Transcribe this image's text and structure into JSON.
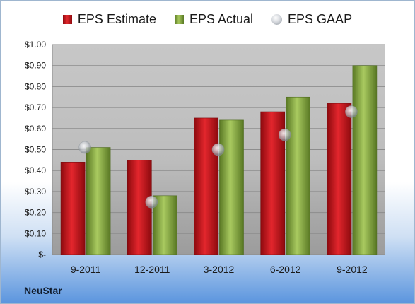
{
  "company": "NeuStar",
  "legend": {
    "estimate": "EPS Estimate",
    "actual": "EPS Actual",
    "gaap": "EPS GAAP"
  },
  "colors": {
    "estimate": "#c8161d",
    "actual": "#8db347",
    "gaap": "#c4c9cf"
  },
  "chart_data": {
    "type": "bar",
    "categories": [
      "9-2011",
      "12-2011",
      "3-2012",
      "6-2012",
      "9-2012"
    ],
    "series": [
      {
        "name": "EPS Estimate",
        "values": [
          0.44,
          0.45,
          0.65,
          0.68,
          0.72
        ]
      },
      {
        "name": "EPS Actual",
        "values": [
          0.51,
          0.28,
          0.64,
          0.75,
          0.9
        ]
      },
      {
        "name": "EPS GAAP",
        "type": "scatter",
        "values": [
          0.51,
          0.25,
          0.5,
          0.57,
          0.68
        ]
      }
    ],
    "ylim": [
      0,
      1.0
    ],
    "yticks": [
      0,
      0.1,
      0.2,
      0.3,
      0.4,
      0.5,
      0.6,
      0.7,
      0.8,
      0.9,
      1.0
    ],
    "ytick_labels": [
      "$-",
      "$0.10",
      "$0.20",
      "$0.30",
      "$0.40",
      "$0.50",
      "$0.60",
      "$0.70",
      "$0.80",
      "$0.90",
      "$1.00"
    ],
    "grid": true,
    "legend_position": "top"
  }
}
